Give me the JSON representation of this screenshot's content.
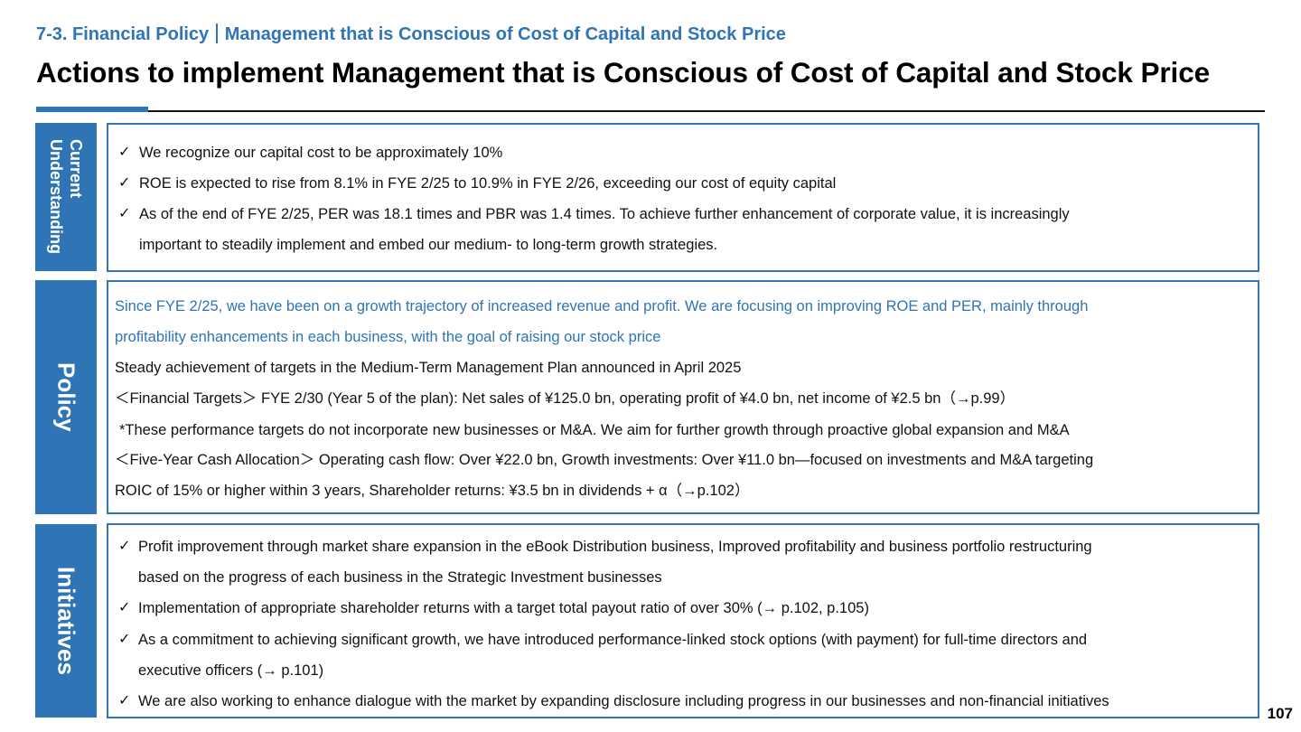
{
  "header": {
    "section": "7-3. Financial Policy",
    "subsection": "Management that is Conscious of Cost of Capital and Stock Price",
    "title": "Actions to implement Management that is Conscious of Cost of Capital and Stock Price"
  },
  "colors": {
    "accent": "#2f74b5",
    "text": "#111111"
  },
  "sections": {
    "current": {
      "label": "Current Understanding",
      "label_line1": "Current",
      "label_line2": "Understanding",
      "items": [
        "We recognize our capital cost to be approximately 10%",
        "ROE is expected to rise from 8.1% in FYE 2/25 to 10.9% in FYE 2/26, exceeding our cost of equity capital",
        "As of the end of FYE 2/25, PER was 18.1 times and PBR was 1.4 times. To achieve further enhancement of corporate value, it is increasingly",
        "important to steadily implement and embed our medium- to long-term growth strategies."
      ]
    },
    "policy": {
      "label": "Policy",
      "lines": [
        "Since FYE 2/25, we have been on a growth trajectory of increased revenue and profit. We are focusing on improving ROE and PER, mainly through",
        "profitability enhancements in each business, with the goal of raising our stock price",
        "Steady achievement of targets in the Medium-Term Management Plan announced in April 2025",
        "＜Financial Targets＞ FYE 2/30 (Year 5 of the plan): Net sales of ¥125.0 bn, operating profit of ¥4.0 bn, net income of ¥2.5 bn（→p.99）",
        "*These performance targets do not incorporate new businesses or M&A. We aim for further growth through proactive global expansion and M&A",
        "＜Five-Year Cash Allocation＞ Operating cash flow: Over ¥22.0 bn, Growth investments: Over ¥11.0 bn―focused on investments and M&A targeting",
        "ROIC of 15% or higher within 3 years, Shareholder returns: ¥3.5 bn in dividends + α（→p.102）"
      ]
    },
    "initiatives": {
      "label": "Initiatives",
      "items": [
        "Profit improvement through market share expansion in the eBook Distribution business, Improved profitability and business portfolio restructuring",
        "based on the progress of each business in the Strategic Investment businesses",
        "Implementation of appropriate shareholder returns with a target total payout ratio of over 30% (→ p.102, p.105)",
        "As a commitment to achieving significant growth, we have introduced performance-linked stock options (with payment) for full-time directors and",
        "executive officers (→ p.101)",
        "We are also working to enhance dialogue with the market by expanding disclosure including progress in our businesses and non-financial initiatives"
      ]
    }
  },
  "check_mark": "✓",
  "page_number": "107"
}
